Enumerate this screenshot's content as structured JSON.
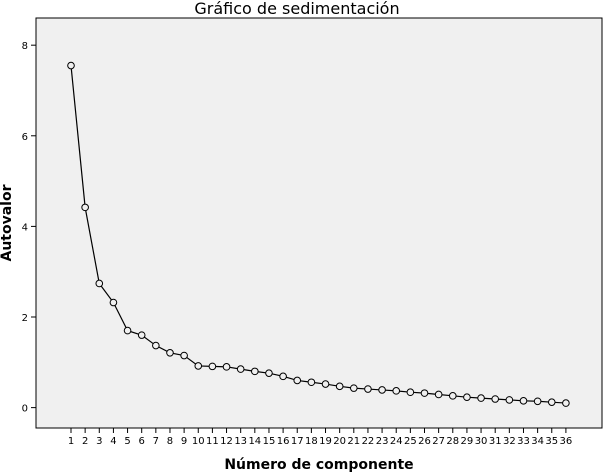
{
  "chart_data": {
    "type": "line",
    "title": "Gráfico de sedimentación",
    "xlabel": "Número de componente",
    "ylabel": "Autovalor",
    "categories": [
      "1",
      "2",
      "3",
      "4",
      "5",
      "6",
      "7",
      "8",
      "9",
      "10",
      "11",
      "12",
      "13",
      "14",
      "15",
      "16",
      "17",
      "18",
      "19",
      "20",
      "21",
      "22",
      "23",
      "24",
      "25",
      "26",
      "27",
      "28",
      "29",
      "30",
      "31",
      "32",
      "33",
      "34",
      "35",
      "36"
    ],
    "series": [
      {
        "values": [
          7.55,
          4.42,
          2.74,
          2.32,
          1.7,
          1.6,
          1.37,
          1.21,
          1.15,
          0.92,
          0.91,
          0.9,
          0.85,
          0.8,
          0.76,
          0.69,
          0.6,
          0.56,
          0.52,
          0.47,
          0.43,
          0.41,
          0.39,
          0.37,
          0.34,
          0.32,
          0.29,
          0.26,
          0.23,
          0.21,
          0.19,
          0.17,
          0.15,
          0.14,
          0.12,
          0.1
        ]
      }
    ],
    "yticks": [
      0,
      2,
      4,
      6,
      8
    ],
    "ylim": [
      -0.45,
      8.6
    ],
    "grid": false,
    "legend": "none",
    "colors": {
      "plot_background": "#f0f0f0",
      "line": "#000000",
      "marker_fill": "#f0f0f0"
    }
  }
}
